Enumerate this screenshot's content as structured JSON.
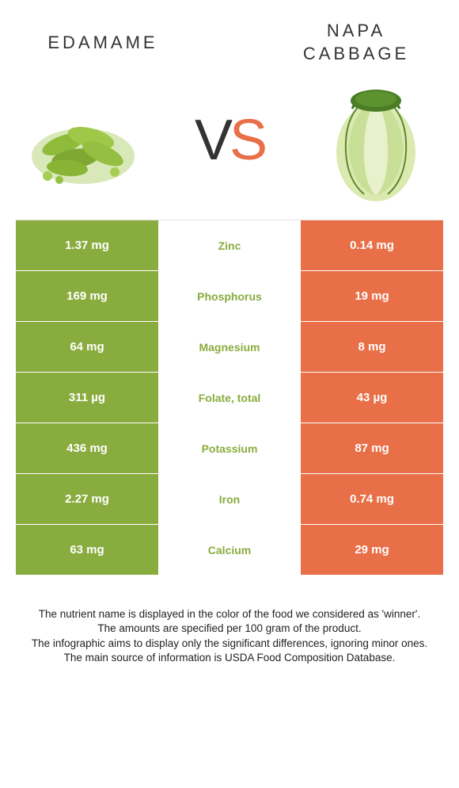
{
  "titles": {
    "left": "EDAMAME",
    "right": "NAPA CABBAGE"
  },
  "vs": {
    "v": "V",
    "s": "S"
  },
  "colors": {
    "left_bg": "#89ac3e",
    "mid_bg": "#ffffff",
    "right_bg": "#e86f47",
    "midtext_winner_left": "#89ac3e",
    "midtext_winner_right": "#e86f47",
    "cell_text": "#ffffff"
  },
  "rows": [
    {
      "left": "1.37 mg",
      "name": "Zinc",
      "right": "0.14 mg",
      "winner": "left"
    },
    {
      "left": "169 mg",
      "name": "Phosphorus",
      "right": "19 mg",
      "winner": "left"
    },
    {
      "left": "64 mg",
      "name": "Magnesium",
      "right": "8 mg",
      "winner": "left"
    },
    {
      "left": "311 µg",
      "name": "Folate, total",
      "right": "43 µg",
      "winner": "left"
    },
    {
      "left": "436 mg",
      "name": "Potassium",
      "right": "87 mg",
      "winner": "left"
    },
    {
      "left": "2.27 mg",
      "name": "Iron",
      "right": "0.74 mg",
      "winner": "left"
    },
    {
      "left": "63 mg",
      "name": "Calcium",
      "right": "29 mg",
      "winner": "left"
    }
  ],
  "footer": {
    "l1": "The nutrient name is displayed in the color of the food we considered as 'winner'.",
    "l2": "The amounts are specified per 100 gram of the product.",
    "l3": "The infographic aims to display only the significant differences, ignoring minor ones.",
    "l4": "The main source of information is USDA Food Composition Database."
  }
}
